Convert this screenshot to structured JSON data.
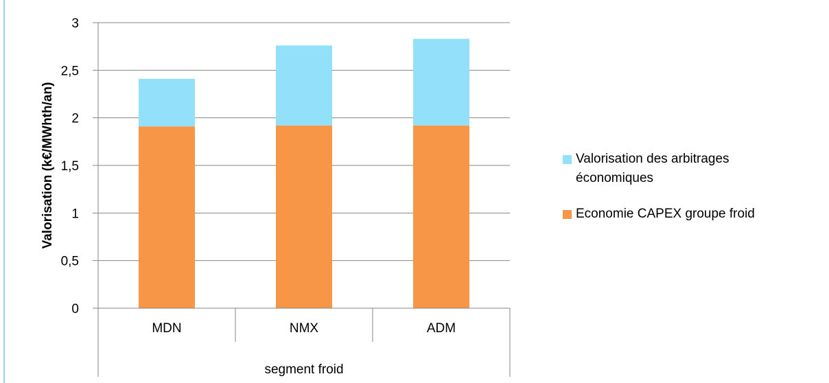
{
  "chart_data": {
    "type": "bar",
    "stacked": true,
    "categories": [
      "MDN",
      "NMX",
      "ADM"
    ],
    "series": [
      {
        "name": "Economie CAPEX groupe froid",
        "values": [
          1.91,
          1.92,
          1.92
        ],
        "color": "#f79646"
      },
      {
        "name": "Valorisation des arbitrages économiques",
        "values": [
          0.5,
          0.84,
          0.91
        ],
        "color": "#93e0fa"
      }
    ],
    "ylabel": "Valorisation  (k€/MWhth/an)",
    "xlabel": "segment froid",
    "ylim": [
      0,
      3
    ],
    "yticks": [
      "0",
      "0,5",
      "1",
      "1,5",
      "2",
      "2,5",
      "3"
    ],
    "grid": true,
    "legend_position": "right"
  }
}
